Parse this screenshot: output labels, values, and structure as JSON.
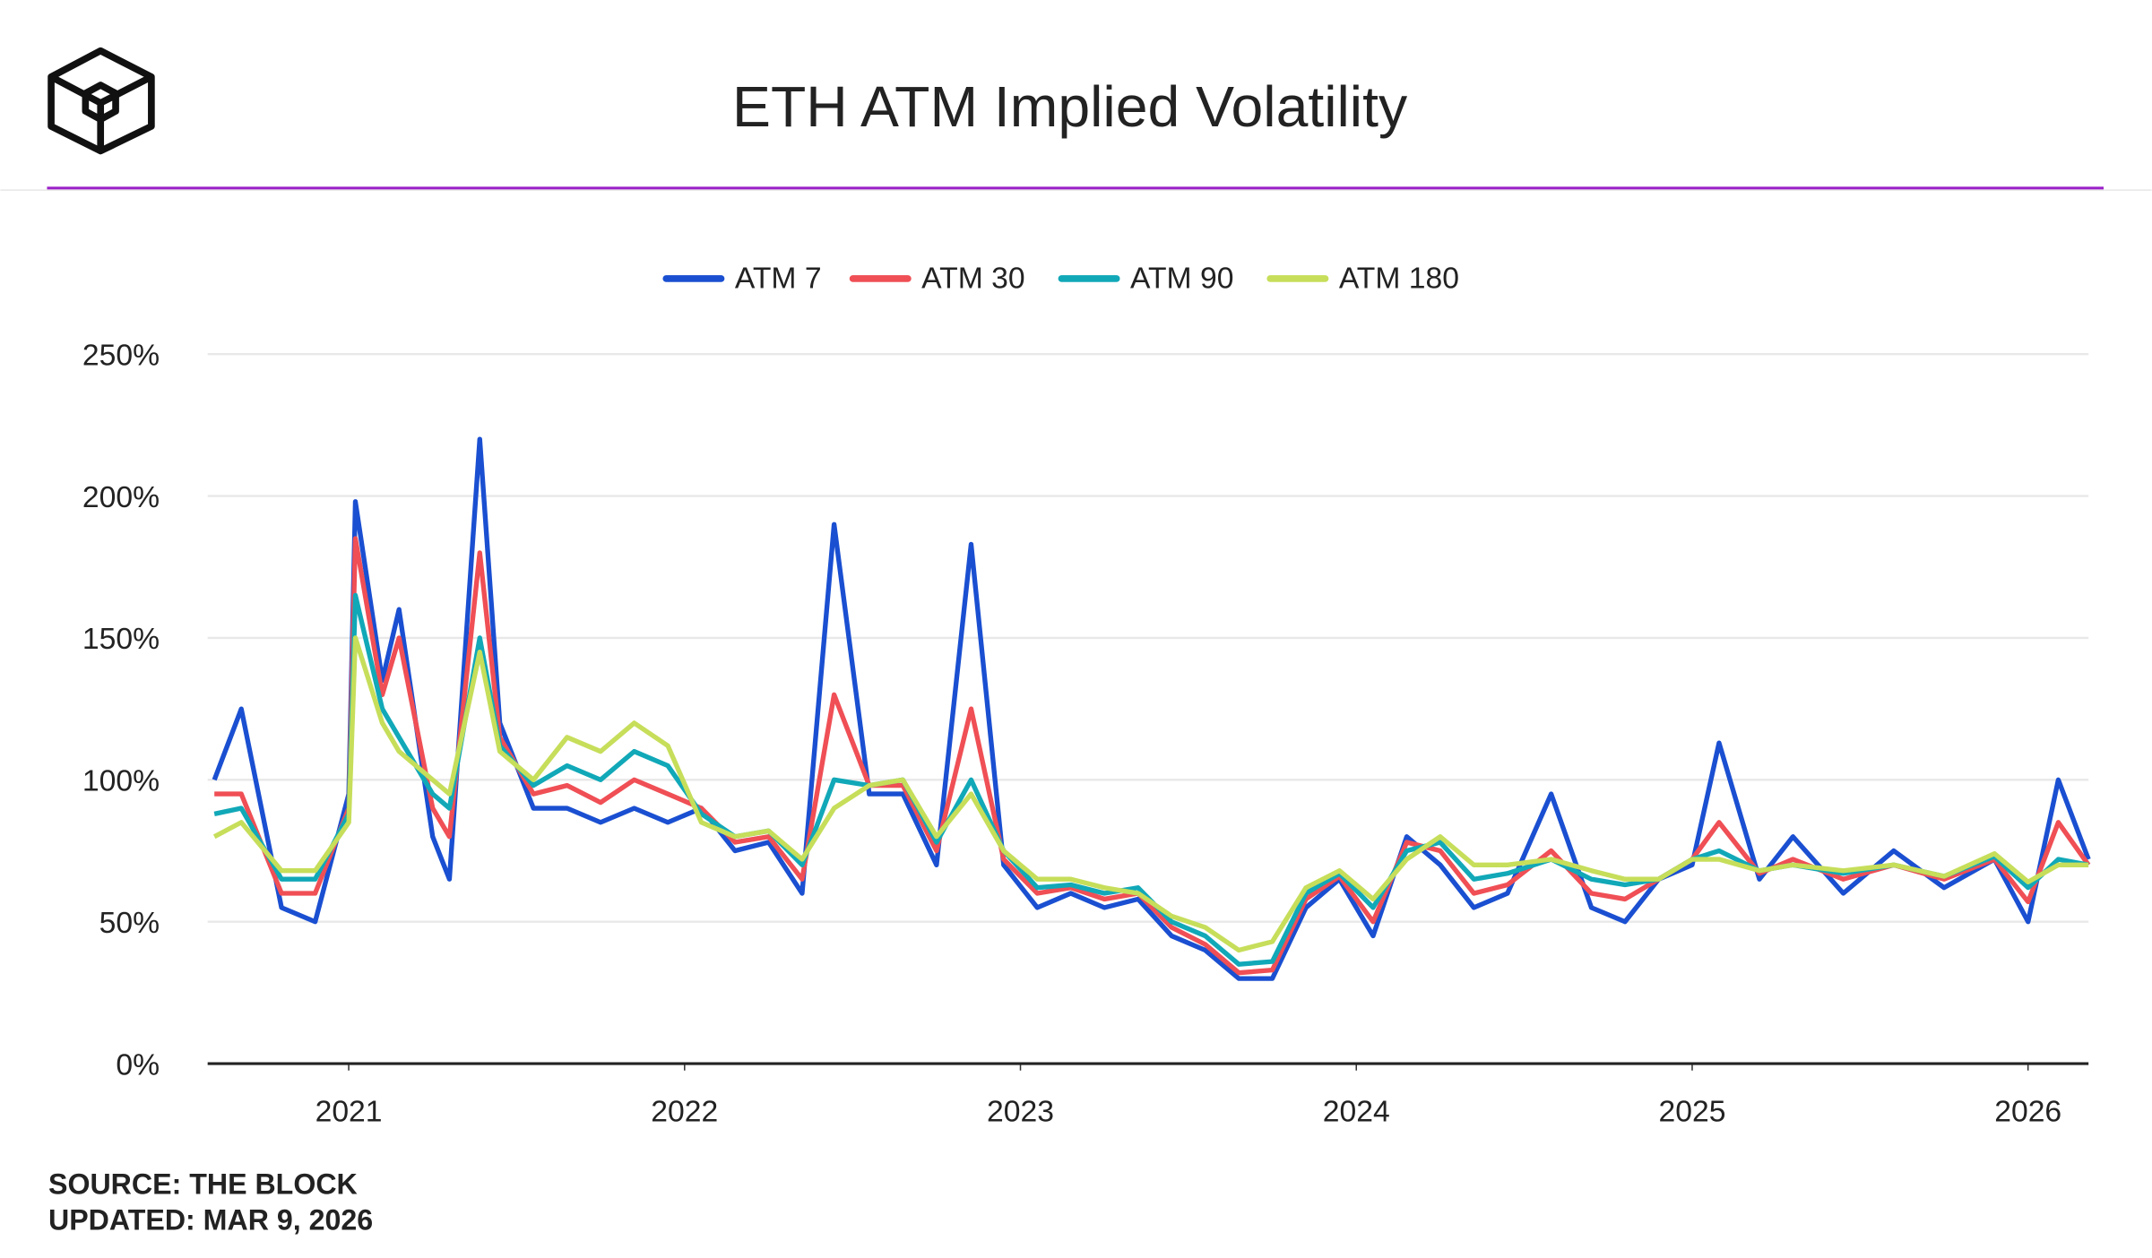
{
  "chart_data": {
    "type": "line",
    "title": "ETH ATM Implied Volatility",
    "source": "SOURCE: THE BLOCK",
    "updated": "UPDATED: MAR 9, 2026",
    "x": [
      2020.6,
      2020.68,
      2020.8,
      2020.9,
      2021.0,
      2021.02,
      2021.1,
      2021.15,
      2021.25,
      2021.3,
      2021.39,
      2021.45,
      2021.55,
      2021.65,
      2021.75,
      2021.85,
      2021.95,
      2022.05,
      2022.15,
      2022.25,
      2022.35,
      2022.445,
      2022.55,
      2022.65,
      2022.75,
      2022.853,
      2022.95,
      2023.05,
      2023.15,
      2023.25,
      2023.35,
      2023.45,
      2023.55,
      2023.65,
      2023.75,
      2023.85,
      2023.95,
      2024.05,
      2024.15,
      2024.25,
      2024.35,
      2024.45,
      2024.58,
      2024.7,
      2024.8,
      2024.9,
      2025.0,
      2025.08,
      2025.2,
      2025.3,
      2025.45,
      2025.6,
      2025.75,
      2025.9,
      2026.0,
      2026.09,
      2026.18
    ],
    "series": [
      {
        "name": "ATM 7",
        "color": "#1a4fd1",
        "values": [
          100,
          125,
          55,
          50,
          95,
          198,
          135,
          160,
          80,
          65,
          220,
          120,
          90,
          90,
          85,
          90,
          85,
          90,
          75,
          78,
          60,
          190,
          95,
          95,
          70,
          183,
          70,
          55,
          60,
          55,
          58,
          45,
          40,
          30,
          30,
          55,
          65,
          45,
          80,
          70,
          55,
          60,
          95,
          55,
          50,
          65,
          70,
          113,
          65,
          80,
          60,
          75,
          62,
          72,
          50,
          100,
          72
        ]
      },
      {
        "name": "ATM 30",
        "color": "#ef4f55",
        "values": [
          95,
          95,
          60,
          60,
          90,
          185,
          130,
          150,
          90,
          80,
          180,
          115,
          95,
          98,
          92,
          100,
          95,
          90,
          78,
          80,
          65,
          130,
          98,
          98,
          75,
          125,
          72,
          60,
          62,
          58,
          60,
          48,
          42,
          32,
          33,
          58,
          66,
          50,
          78,
          75,
          60,
          63,
          75,
          60,
          58,
          65,
          72,
          85,
          67,
          72,
          65,
          70,
          65,
          72,
          57,
          85,
          70
        ]
      },
      {
        "name": "ATM 90",
        "color": "#11a8b8",
        "values": [
          88,
          90,
          65,
          65,
          88,
          165,
          125,
          115,
          95,
          90,
          150,
          112,
          98,
          105,
          100,
          110,
          105,
          88,
          80,
          82,
          70,
          100,
          98,
          100,
          78,
          100,
          75,
          62,
          63,
          60,
          62,
          50,
          45,
          35,
          36,
          60,
          67,
          55,
          75,
          78,
          65,
          67,
          72,
          65,
          63,
          65,
          72,
          75,
          68,
          70,
          67,
          70,
          66,
          73,
          62,
          72,
          70
        ]
      },
      {
        "name": "ATM 180",
        "color": "#c6de5a",
        "values": [
          80,
          85,
          68,
          68,
          85,
          150,
          120,
          110,
          100,
          95,
          145,
          110,
          100,
          115,
          110,
          120,
          112,
          85,
          80,
          82,
          72,
          90,
          98,
          100,
          80,
          95,
          75,
          65,
          65,
          62,
          60,
          52,
          48,
          40,
          43,
          62,
          68,
          58,
          72,
          80,
          70,
          70,
          72,
          68,
          65,
          65,
          72,
          72,
          68,
          70,
          68,
          70,
          66,
          74,
          64,
          70,
          70
        ]
      }
    ],
    "xlim": [
      2020.58,
      2026.18
    ],
    "xticks": [
      2021,
      2022,
      2023,
      2024,
      2025,
      2026
    ],
    "ylim": [
      0,
      250
    ],
    "yticks": [
      {
        "value": 0,
        "label": "0%"
      },
      {
        "value": 50,
        "label": "50%"
      },
      {
        "value": 100,
        "label": "100%"
      },
      {
        "value": 150,
        "label": "150%"
      },
      {
        "value": 200,
        "label": "200%"
      },
      {
        "value": 250,
        "label": "250%"
      }
    ],
    "grid": true,
    "legend": "top"
  }
}
